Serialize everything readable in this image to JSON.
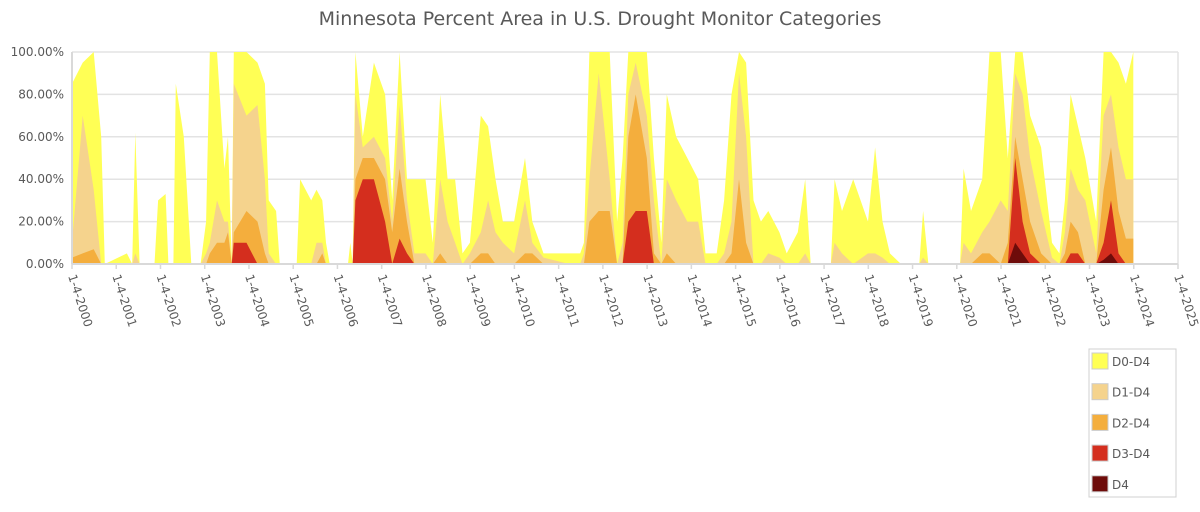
{
  "chart_data": {
    "type": "area",
    "title": "Minnesota Percent Area in U.S. Drought Monitor Categories",
    "xlabel": "",
    "ylabel": "",
    "x_ticks": [
      "1-4-2000",
      "1-4-2001",
      "1-4-2002",
      "1-4-2003",
      "1-4-2004",
      "1-4-2005",
      "1-4-2006",
      "1-4-2007",
      "1-4-2008",
      "1-4-2009",
      "1-4-2010",
      "1-4-2011",
      "1-4-2012",
      "1-4-2013",
      "1-4-2014",
      "1-4-2015",
      "1-4-2016",
      "1-4-2017",
      "1-4-2018",
      "1-4-2019",
      "1-4-2020",
      "1-4-2021",
      "1-4-2022",
      "1-4-2023",
      "1-4-2024",
      "1-4-2025"
    ],
    "y_ticks": [
      "0.00%",
      "20.00%",
      "40.00%",
      "60.00%",
      "80.00%",
      "100.00%"
    ],
    "ylim": [
      0,
      100
    ],
    "grid": "horizontal",
    "legend_position": "right-bottom",
    "series_names": [
      "D0-D4",
      "D1-D4",
      "D2-D4",
      "D3-D4",
      "D4"
    ],
    "colors": [
      "#FFFF55",
      "#F5D38D",
      "#F4AE3D",
      "#D42E1E",
      "#6E0C0A"
    ],
    "columns": [
      "date",
      "D0-D4",
      "D1-D4",
      "D2-D4",
      "D3-D4",
      "D4"
    ],
    "rows": [
      [
        "2000-01-04",
        85,
        10,
        3,
        0,
        0
      ],
      [
        "2000-04-01",
        95,
        70,
        5,
        0,
        0
      ],
      [
        "2000-07-01",
        100,
        35,
        7,
        0,
        0
      ],
      [
        "2000-09-01",
        60,
        0,
        0,
        0,
        0
      ],
      [
        "2000-10-01",
        0,
        0,
        0,
        0,
        0
      ],
      [
        "2001-04-01",
        5,
        0,
        0,
        0,
        0
      ],
      [
        "2001-05-15",
        0,
        0,
        0,
        0,
        0
      ],
      [
        "2001-06-10",
        62,
        5,
        0,
        0,
        0
      ],
      [
        "2001-07-15",
        0,
        0,
        0,
        0,
        0
      ],
      [
        "2001-11-15",
        0,
        0,
        0,
        0,
        0
      ],
      [
        "2001-12-15",
        30,
        0,
        0,
        0,
        0
      ],
      [
        "2002-02-15",
        33,
        0,
        0,
        0,
        0
      ],
      [
        "2002-03-10",
        0,
        0,
        0,
        0,
        0
      ],
      [
        "2002-04-20",
        0,
        0,
        0,
        0,
        0
      ],
      [
        "2002-05-10",
        85,
        0,
        0,
        0,
        0
      ],
      [
        "2002-07-15",
        60,
        0,
        0,
        0,
        0
      ],
      [
        "2002-09-15",
        0,
        0,
        0,
        0,
        0
      ],
      [
        "2002-12-01",
        0,
        0,
        0,
        0,
        0
      ],
      [
        "2003-01-15",
        20,
        5,
        0,
        0,
        0
      ],
      [
        "2003-02-15",
        100,
        10,
        5,
        0,
        0
      ],
      [
        "2003-04-15",
        100,
        30,
        10,
        0,
        0
      ],
      [
        "2003-06-15",
        45,
        20,
        10,
        0,
        0
      ],
      [
        "2003-07-15",
        60,
        20,
        15,
        0,
        0
      ],
      [
        "2003-08-15",
        0,
        0,
        0,
        0,
        0
      ],
      [
        "2003-09-01",
        100,
        85,
        15,
        10,
        0
      ],
      [
        "2003-12-15",
        100,
        70,
        25,
        10,
        0
      ],
      [
        "2004-03-15",
        95,
        75,
        20,
        0,
        0
      ],
      [
        "2004-05-15",
        85,
        40,
        5,
        0,
        0
      ],
      [
        "2004-06-15",
        30,
        5,
        0,
        0,
        0
      ],
      [
        "2004-08-15",
        25,
        0,
        0,
        0,
        0
      ],
      [
        "2004-09-15",
        0,
        0,
        0,
        0,
        0
      ],
      [
        "2005-02-01",
        0,
        0,
        0,
        0,
        0
      ],
      [
        "2005-03-01",
        40,
        0,
        0,
        0,
        0
      ],
      [
        "2005-06-01",
        30,
        0,
        0,
        0,
        0
      ],
      [
        "2005-07-15",
        35,
        10,
        0,
        0,
        0
      ],
      [
        "2005-09-01",
        30,
        10,
        5,
        0,
        0
      ],
      [
        "2005-10-01",
        10,
        0,
        0,
        0,
        0
      ],
      [
        "2005-11-01",
        0,
        0,
        0,
        0,
        0
      ],
      [
        "2006-04-01",
        0,
        0,
        0,
        0,
        0
      ],
      [
        "2006-04-20",
        10,
        0,
        0,
        0,
        0
      ],
      [
        "2006-05-10",
        0,
        0,
        0,
        0,
        0
      ],
      [
        "2006-06-01",
        100,
        80,
        40,
        30,
        0
      ],
      [
        "2006-08-01",
        60,
        55,
        50,
        40,
        0
      ],
      [
        "2006-11-01",
        95,
        60,
        50,
        40,
        0
      ],
      [
        "2007-02-01",
        80,
        50,
        40,
        20,
        0
      ],
      [
        "2007-04-01",
        30,
        20,
        15,
        0,
        0
      ],
      [
        "2007-06-01",
        100,
        75,
        45,
        12,
        0
      ],
      [
        "2007-08-01",
        40,
        30,
        20,
        5,
        0
      ],
      [
        "2007-10-01",
        40,
        5,
        0,
        0,
        0
      ],
      [
        "2008-01-01",
        40,
        5,
        0,
        0,
        0
      ],
      [
        "2008-03-01",
        10,
        0,
        0,
        0,
        0
      ],
      [
        "2008-05-01",
        80,
        40,
        5,
        0,
        0
      ],
      [
        "2008-07-01",
        40,
        20,
        0,
        0,
        0
      ],
      [
        "2008-09-01",
        40,
        10,
        0,
        0,
        0
      ],
      [
        "2008-11-01",
        5,
        0,
        0,
        0,
        0
      ],
      [
        "2009-01-01",
        10,
        5,
        0,
        0,
        0
      ],
      [
        "2009-04-01",
        70,
        15,
        5,
        0,
        0
      ],
      [
        "2009-06-01",
        65,
        30,
        5,
        0,
        0
      ],
      [
        "2009-08-01",
        40,
        15,
        0,
        0,
        0
      ],
      [
        "2009-10-01",
        20,
        10,
        0,
        0,
        0
      ],
      [
        "2010-01-01",
        20,
        5,
        0,
        0,
        0
      ],
      [
        "2010-04-01",
        50,
        30,
        5,
        0,
        0
      ],
      [
        "2010-06-01",
        20,
        10,
        5,
        0,
        0
      ],
      [
        "2010-09-01",
        5,
        3,
        0,
        0,
        0
      ],
      [
        "2011-04-01",
        5,
        0,
        0,
        0,
        0
      ],
      [
        "2011-07-01",
        5,
        0,
        0,
        0,
        0
      ],
      [
        "2011-08-01",
        10,
        5,
        0,
        0,
        0
      ],
      [
        "2011-09-15",
        100,
        40,
        20,
        0,
        0
      ],
      [
        "2011-12-01",
        100,
        90,
        25,
        0,
        0
      ],
      [
        "2012-03-01",
        100,
        40,
        25,
        0,
        0
      ],
      [
        "2012-05-01",
        20,
        0,
        0,
        0,
        0
      ],
      [
        "2012-06-15",
        50,
        10,
        0,
        0,
        0
      ],
      [
        "2012-08-01",
        100,
        80,
        60,
        20,
        0
      ],
      [
        "2012-10-01",
        100,
        95,
        80,
        25,
        0
      ],
      [
        "2013-01-01",
        100,
        70,
        50,
        25,
        0
      ],
      [
        "2013-03-01",
        50,
        30,
        5,
        0,
        0
      ],
      [
        "2013-05-01",
        10,
        0,
        0,
        0,
        0
      ],
      [
        "2013-06-15",
        80,
        40,
        5,
        0,
        0
      ],
      [
        "2013-09-01",
        60,
        30,
        0,
        0,
        0
      ],
      [
        "2013-12-01",
        50,
        20,
        0,
        0,
        0
      ],
      [
        "2014-03-01",
        40,
        20,
        0,
        0,
        0
      ],
      [
        "2014-05-01",
        5,
        0,
        0,
        0,
        0
      ],
      [
        "2014-08-01",
        5,
        0,
        0,
        0,
        0
      ],
      [
        "2014-10-01",
        30,
        5,
        0,
        0,
        0
      ],
      [
        "2014-12-01",
        80,
        20,
        5,
        0,
        0
      ],
      [
        "2015-02-01",
        100,
        90,
        40,
        0,
        0
      ],
      [
        "2015-04-01",
        95,
        60,
        10,
        0,
        0
      ],
      [
        "2015-06-01",
        30,
        0,
        0,
        0,
        0
      ],
      [
        "2015-08-01",
        20,
        0,
        0,
        0,
        0
      ],
      [
        "2015-10-01",
        25,
        5,
        0,
        0,
        0
      ],
      [
        "2016-01-01",
        15,
        3,
        0,
        0,
        0
      ],
      [
        "2016-03-01",
        5,
        0,
        0,
        0,
        0
      ],
      [
        "2016-06-01",
        15,
        0,
        0,
        0,
        0
      ],
      [
        "2016-08-01",
        40,
        5,
        0,
        0,
        0
      ],
      [
        "2016-09-15",
        0,
        0,
        0,
        0,
        0
      ],
      [
        "2017-03-01",
        0,
        0,
        0,
        0,
        0
      ],
      [
        "2017-04-01",
        40,
        10,
        0,
        0,
        0
      ],
      [
        "2017-06-01",
        25,
        5,
        0,
        0,
        0
      ],
      [
        "2017-09-01",
        40,
        0,
        0,
        0,
        0
      ],
      [
        "2018-01-01",
        20,
        5,
        0,
        0,
        0
      ],
      [
        "2018-03-01",
        55,
        5,
        0,
        0,
        0
      ],
      [
        "2018-05-01",
        20,
        3,
        0,
        0,
        0
      ],
      [
        "2018-07-01",
        5,
        0,
        0,
        0,
        0
      ],
      [
        "2018-10-01",
        0,
        0,
        0,
        0,
        0
      ],
      [
        "2019-03-01",
        0,
        0,
        0,
        0,
        0
      ],
      [
        "2019-04-01",
        25,
        3,
        0,
        0,
        0
      ],
      [
        "2019-05-15",
        0,
        0,
        0,
        0,
        0
      ],
      [
        "2020-02-01",
        0,
        0,
        0,
        0,
        0
      ],
      [
        "2020-03-01",
        45,
        10,
        0,
        0,
        0
      ],
      [
        "2020-05-01",
        25,
        5,
        0,
        0,
        0
      ],
      [
        "2020-08-01",
        40,
        15,
        5,
        0,
        0
      ],
      [
        "2020-10-01",
        100,
        20,
        5,
        0,
        0
      ],
      [
        "2021-01-01",
        100,
        30,
        0,
        0,
        0
      ],
      [
        "2021-03-01",
        50,
        25,
        10,
        0,
        0
      ],
      [
        "2021-05-01",
        100,
        90,
        60,
        50,
        10
      ],
      [
        "2021-07-01",
        100,
        80,
        40,
        20,
        5
      ],
      [
        "2021-09-01",
        70,
        50,
        20,
        5,
        0
      ],
      [
        "2021-12-01",
        55,
        25,
        5,
        0,
        0
      ],
      [
        "2022-03-01",
        10,
        3,
        0,
        0,
        0
      ],
      [
        "2022-05-01",
        5,
        0,
        0,
        0,
        0
      ],
      [
        "2022-06-15",
        30,
        15,
        5,
        0,
        0
      ],
      [
        "2022-08-01",
        80,
        45,
        20,
        5,
        0
      ],
      [
        "2022-10-01",
        65,
        35,
        15,
        5,
        0
      ],
      [
        "2022-12-01",
        50,
        30,
        0,
        0,
        0
      ],
      [
        "2023-03-01",
        20,
        5,
        0,
        0,
        0
      ],
      [
        "2023-05-01",
        100,
        70,
        35,
        10,
        2
      ],
      [
        "2023-07-01",
        100,
        80,
        55,
        30,
        5
      ],
      [
        "2023-09-01",
        95,
        55,
        25,
        5,
        0
      ],
      [
        "2023-11-01",
        85,
        40,
        12,
        0,
        0
      ],
      [
        "2024-01-01",
        100,
        40,
        12,
        0,
        0
      ]
    ]
  }
}
